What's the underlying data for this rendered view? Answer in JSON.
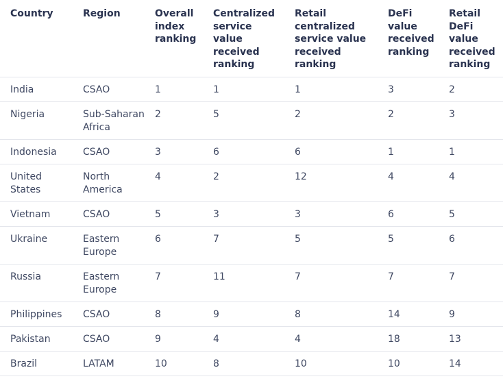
{
  "headers": [
    "Country",
    "Region",
    "Overall index ranking",
    "Centralized service value received ranking",
    "Retail centralized service value received ranking",
    "DeFi value received ranking",
    "Retail DeFi value received ranking"
  ],
  "rows": [
    [
      "India",
      "CSAO",
      "1",
      "1",
      "1",
      "3",
      "2"
    ],
    [
      "Nigeria",
      "Sub-Saharan Africa",
      "2",
      "5",
      "2",
      "2",
      "3"
    ],
    [
      "Indonesia",
      "CSAO",
      "3",
      "6",
      "6",
      "1",
      "1"
    ],
    [
      "United States",
      "North America",
      "4",
      "2",
      "12",
      "4",
      "4"
    ],
    [
      "Vietnam",
      "CSAO",
      "5",
      "3",
      "3",
      "6",
      "5"
    ],
    [
      "Ukraine",
      "Eastern Europe",
      "6",
      "7",
      "5",
      "5",
      "6"
    ],
    [
      "Russia",
      "Eastern Europe",
      "7",
      "11",
      "7",
      "7",
      "7"
    ],
    [
      "Philippines",
      "CSAO",
      "8",
      "9",
      "8",
      "14",
      "9"
    ],
    [
      "Pakistan",
      "CSAO",
      "9",
      "4",
      "4",
      "18",
      "13"
    ],
    [
      "Brazil",
      "LATAM",
      "10",
      "8",
      "10",
      "10",
      "14"
    ]
  ]
}
